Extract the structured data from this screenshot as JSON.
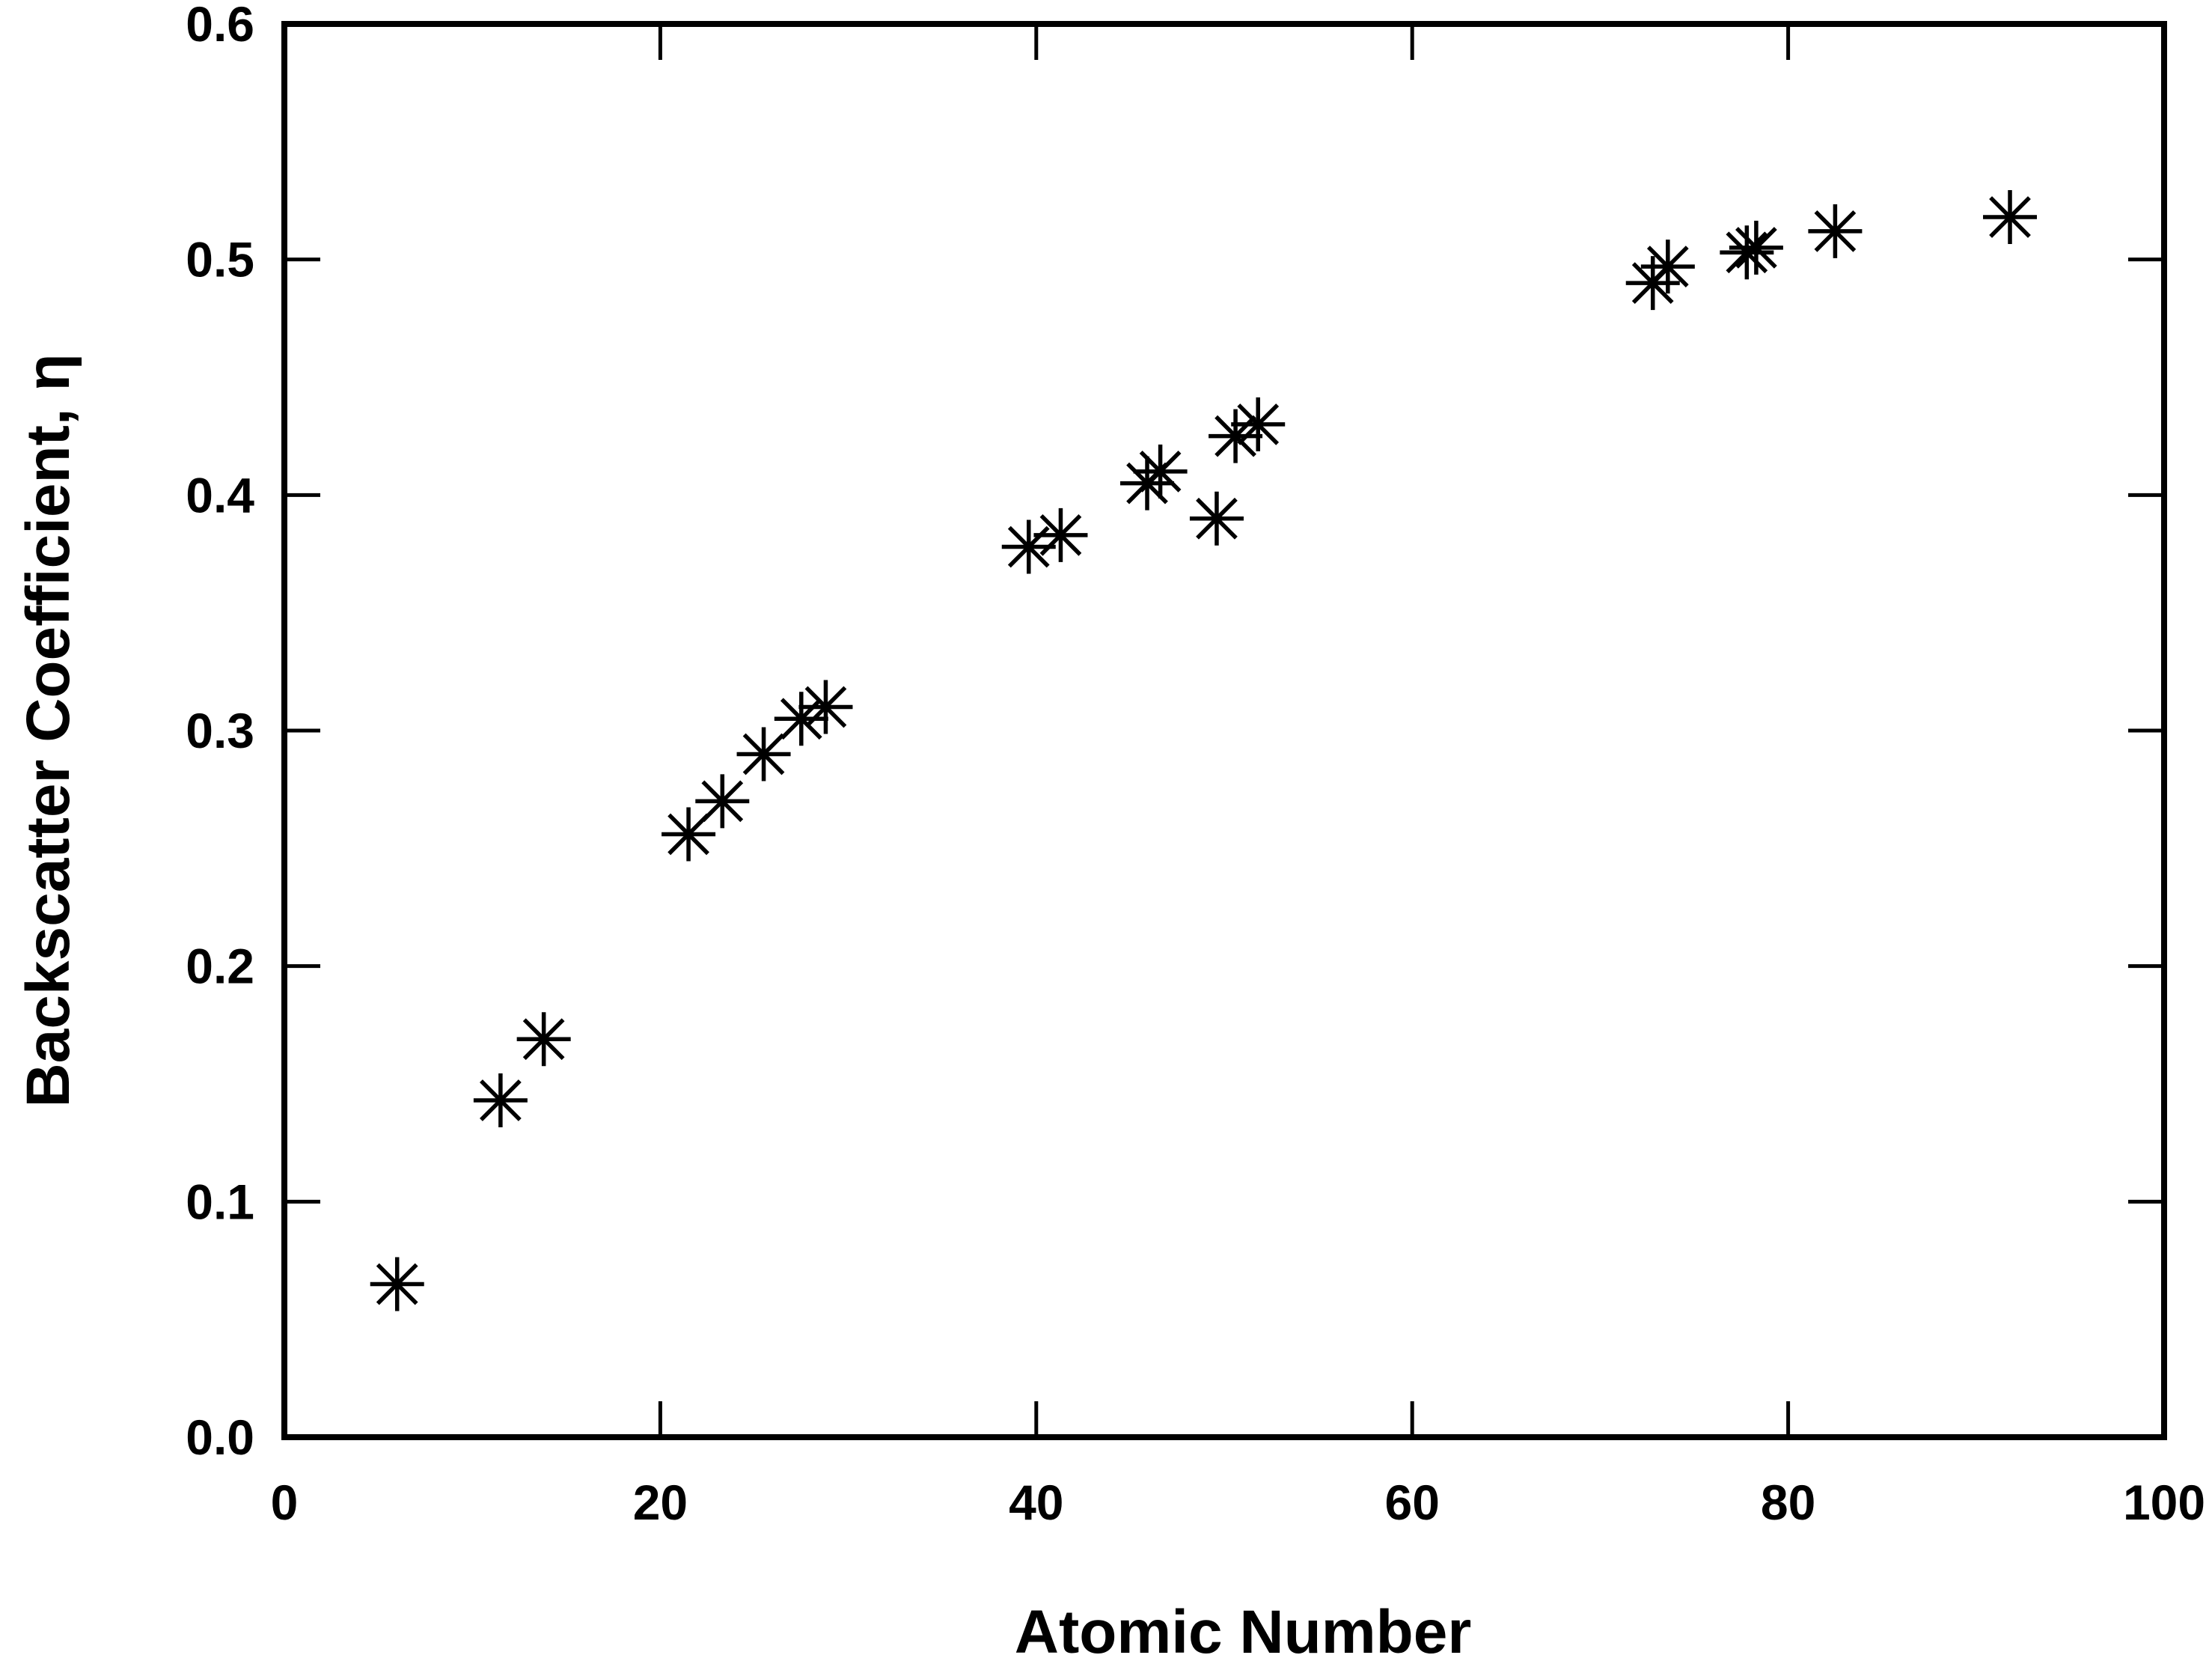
{
  "chart_data": {
    "type": "scatter",
    "title": "",
    "xlabel": "Atomic Number",
    "ylabel": "Backscatter Coefficient, η",
    "xlim": [
      0,
      100
    ],
    "ylim": [
      0.0,
      0.6
    ],
    "x_ticks": [
      "0",
      "20",
      "40",
      "60",
      "80",
      "100"
    ],
    "y_ticks": [
      "0.0",
      "0.1",
      "0.2",
      "0.3",
      "0.4",
      "0.5",
      "0.6"
    ],
    "grid": false,
    "marker": "asterisk",
    "series": [
      {
        "points": [
          {
            "x": 6,
            "y": 0.065
          },
          {
            "x": 11.5,
            "y": 0.143
          },
          {
            "x": 13.8,
            "y": 0.169
          },
          {
            "x": 21.5,
            "y": 0.256
          },
          {
            "x": 23.3,
            "y": 0.27
          },
          {
            "x": 25.5,
            "y": 0.29
          },
          {
            "x": 27.5,
            "y": 0.305
          },
          {
            "x": 28.8,
            "y": 0.31
          },
          {
            "x": 39.6,
            "y": 0.378
          },
          {
            "x": 41.3,
            "y": 0.383
          },
          {
            "x": 45.9,
            "y": 0.405
          },
          {
            "x": 46.6,
            "y": 0.41
          },
          {
            "x": 49.6,
            "y": 0.39
          },
          {
            "x": 50.6,
            "y": 0.425
          },
          {
            "x": 51.8,
            "y": 0.43
          },
          {
            "x": 72.8,
            "y": 0.49
          },
          {
            "x": 73.6,
            "y": 0.497
          },
          {
            "x": 77.8,
            "y": 0.503
          },
          {
            "x": 78.3,
            "y": 0.505
          },
          {
            "x": 82.5,
            "y": 0.512
          },
          {
            "x": 91.8,
            "y": 0.518
          }
        ]
      }
    ]
  }
}
